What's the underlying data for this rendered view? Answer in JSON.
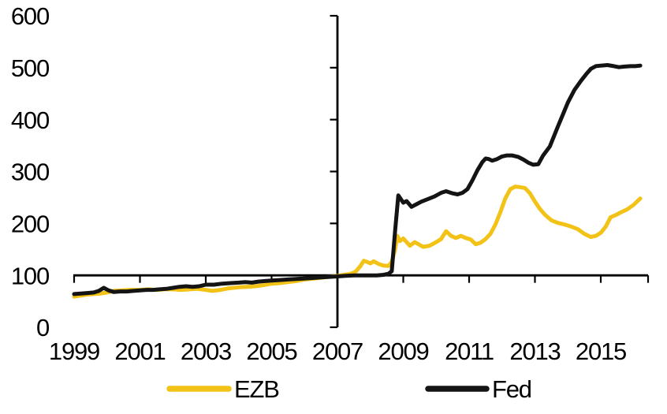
{
  "chart_data": {
    "type": "line",
    "title": "",
    "x_axis": {
      "tick_labels": [
        "1999",
        "2001",
        "2003",
        "2005",
        "2007",
        "2009",
        "2011",
        "2013",
        "2015"
      ],
      "tick_values": [
        1999,
        2001,
        2003,
        2005,
        2007,
        2009,
        2011,
        2013,
        2015
      ],
      "range": [
        1999,
        2016.45
      ],
      "axis_crosses_at_y": 100
    },
    "y_axis": {
      "tick_labels": [
        "0",
        "100",
        "200",
        "300",
        "400",
        "500",
        "600"
      ],
      "tick_values": [
        0,
        100,
        200,
        300,
        400,
        500,
        600
      ],
      "range": [
        0,
        600
      ],
      "axis_crosses_at_x": 2007
    },
    "grid": false,
    "axis_color": "#000000",
    "legend": {
      "position": "bottom",
      "items": [
        {
          "label": "EZB",
          "color": "#F3C216"
        },
        {
          "label": "Fed",
          "color": "#141414"
        }
      ]
    },
    "series": [
      {
        "name": "EZB",
        "color": "#F3C216",
        "points": [
          [
            1999.0,
            59
          ],
          [
            1999.2,
            61
          ],
          [
            1999.4,
            63
          ],
          [
            1999.6,
            64
          ],
          [
            1999.8,
            65
          ],
          [
            2000.0,
            67
          ],
          [
            2000.2,
            70
          ],
          [
            2000.45,
            71
          ],
          [
            2000.7,
            72
          ],
          [
            2001.0,
            72
          ],
          [
            2001.25,
            73
          ],
          [
            2001.5,
            72
          ],
          [
            2001.75,
            73
          ],
          [
            2002.0,
            73
          ],
          [
            2002.25,
            72
          ],
          [
            2002.5,
            73
          ],
          [
            2002.75,
            74
          ],
          [
            2003.0,
            72
          ],
          [
            2003.2,
            70
          ],
          [
            2003.45,
            72
          ],
          [
            2003.7,
            75
          ],
          [
            2004.0,
            77
          ],
          [
            2004.25,
            78
          ],
          [
            2004.5,
            79
          ],
          [
            2004.75,
            81
          ],
          [
            2005.0,
            84
          ],
          [
            2005.25,
            85
          ],
          [
            2005.5,
            87
          ],
          [
            2005.75,
            89
          ],
          [
            2006.0,
            92
          ],
          [
            2006.3,
            94
          ],
          [
            2006.6,
            96
          ],
          [
            2007.0,
            99
          ],
          [
            2007.2,
            101
          ],
          [
            2007.4,
            103
          ],
          [
            2007.55,
            107
          ],
          [
            2007.7,
            118
          ],
          [
            2007.8,
            128
          ],
          [
            2007.9,
            126
          ],
          [
            2008.0,
            123
          ],
          [
            2008.1,
            127
          ],
          [
            2008.25,
            122
          ],
          [
            2008.4,
            119
          ],
          [
            2008.55,
            118
          ],
          [
            2008.65,
            126
          ],
          [
            2008.75,
            150
          ],
          [
            2008.82,
            176
          ],
          [
            2008.9,
            166
          ],
          [
            2009.0,
            171
          ],
          [
            2009.2,
            157
          ],
          [
            2009.35,
            164
          ],
          [
            2009.6,
            155
          ],
          [
            2009.8,
            157
          ],
          [
            2010.0,
            164
          ],
          [
            2010.15,
            170
          ],
          [
            2010.3,
            185
          ],
          [
            2010.45,
            176
          ],
          [
            2010.6,
            172
          ],
          [
            2010.75,
            176
          ],
          [
            2010.9,
            172
          ],
          [
            2011.05,
            169
          ],
          [
            2011.2,
            160
          ],
          [
            2011.35,
            163
          ],
          [
            2011.5,
            170
          ],
          [
            2011.65,
            180
          ],
          [
            2011.8,
            198
          ],
          [
            2011.95,
            222
          ],
          [
            2012.1,
            248
          ],
          [
            2012.25,
            266
          ],
          [
            2012.4,
            271
          ],
          [
            2012.55,
            270
          ],
          [
            2012.7,
            268
          ],
          [
            2012.85,
            258
          ],
          [
            2013.0,
            242
          ],
          [
            2013.15,
            228
          ],
          [
            2013.3,
            217
          ],
          [
            2013.5,
            206
          ],
          [
            2013.7,
            201
          ],
          [
            2013.9,
            198
          ],
          [
            2014.1,
            194
          ],
          [
            2014.3,
            189
          ],
          [
            2014.5,
            180
          ],
          [
            2014.7,
            174
          ],
          [
            2014.85,
            176
          ],
          [
            2015.0,
            182
          ],
          [
            2015.15,
            194
          ],
          [
            2015.3,
            212
          ],
          [
            2015.45,
            216
          ],
          [
            2015.6,
            221
          ],
          [
            2015.8,
            227
          ],
          [
            2016.0,
            236
          ],
          [
            2016.2,
            248
          ]
        ]
      },
      {
        "name": "Fed",
        "color": "#141414",
        "points": [
          [
            1999.0,
            64
          ],
          [
            1999.2,
            65
          ],
          [
            1999.4,
            66
          ],
          [
            1999.6,
            67
          ],
          [
            1999.75,
            70
          ],
          [
            1999.9,
            76
          ],
          [
            2000.05,
            71
          ],
          [
            2000.2,
            68
          ],
          [
            2000.4,
            69
          ],
          [
            2000.6,
            69
          ],
          [
            2000.8,
            70
          ],
          [
            2001.0,
            71
          ],
          [
            2001.2,
            72
          ],
          [
            2001.4,
            72
          ],
          [
            2001.6,
            73
          ],
          [
            2001.8,
            74
          ],
          [
            2002.0,
            76
          ],
          [
            2002.2,
            78
          ],
          [
            2002.4,
            79
          ],
          [
            2002.6,
            78
          ],
          [
            2002.8,
            79
          ],
          [
            2003.0,
            82
          ],
          [
            2003.25,
            82
          ],
          [
            2003.5,
            84
          ],
          [
            2003.75,
            85
          ],
          [
            2004.0,
            86
          ],
          [
            2004.2,
            87
          ],
          [
            2004.4,
            86
          ],
          [
            2004.6,
            88
          ],
          [
            2004.8,
            89
          ],
          [
            2005.0,
            90
          ],
          [
            2005.25,
            91
          ],
          [
            2005.5,
            92
          ],
          [
            2005.75,
            93
          ],
          [
            2006.0,
            94
          ],
          [
            2006.25,
            95
          ],
          [
            2006.5,
            96
          ],
          [
            2006.75,
            97
          ],
          [
            2007.0,
            98
          ],
          [
            2007.25,
            99
          ],
          [
            2007.5,
            100
          ],
          [
            2007.75,
            100
          ],
          [
            2008.0,
            100
          ],
          [
            2008.2,
            100
          ],
          [
            2008.4,
            101
          ],
          [
            2008.55,
            103
          ],
          [
            2008.65,
            108
          ],
          [
            2008.75,
            185
          ],
          [
            2008.85,
            254
          ],
          [
            2009.0,
            240
          ],
          [
            2009.1,
            243
          ],
          [
            2009.25,
            232
          ],
          [
            2009.4,
            237
          ],
          [
            2009.55,
            242
          ],
          [
            2009.75,
            247
          ],
          [
            2009.95,
            252
          ],
          [
            2010.15,
            259
          ],
          [
            2010.3,
            262
          ],
          [
            2010.5,
            258
          ],
          [
            2010.65,
            256
          ],
          [
            2010.8,
            259
          ],
          [
            2010.95,
            266
          ],
          [
            2011.1,
            283
          ],
          [
            2011.25,
            302
          ],
          [
            2011.4,
            318
          ],
          [
            2011.5,
            325
          ],
          [
            2011.6,
            324
          ],
          [
            2011.7,
            321
          ],
          [
            2011.85,
            324
          ],
          [
            2012.0,
            329
          ],
          [
            2012.15,
            331
          ],
          [
            2012.3,
            331
          ],
          [
            2012.5,
            328
          ],
          [
            2012.65,
            323
          ],
          [
            2012.8,
            317
          ],
          [
            2012.95,
            313
          ],
          [
            2013.1,
            314
          ],
          [
            2013.25,
            331
          ],
          [
            2013.45,
            348
          ],
          [
            2013.7,
            387
          ],
          [
            2013.85,
            410
          ],
          [
            2014.0,
            433
          ],
          [
            2014.2,
            457
          ],
          [
            2014.4,
            475
          ],
          [
            2014.55,
            487
          ],
          [
            2014.7,
            498
          ],
          [
            2014.85,
            503
          ],
          [
            2015.0,
            504
          ],
          [
            2015.2,
            505
          ],
          [
            2015.4,
            503
          ],
          [
            2015.55,
            501
          ],
          [
            2015.7,
            502
          ],
          [
            2015.9,
            503
          ],
          [
            2016.05,
            503
          ],
          [
            2016.2,
            504
          ]
        ]
      }
    ]
  }
}
